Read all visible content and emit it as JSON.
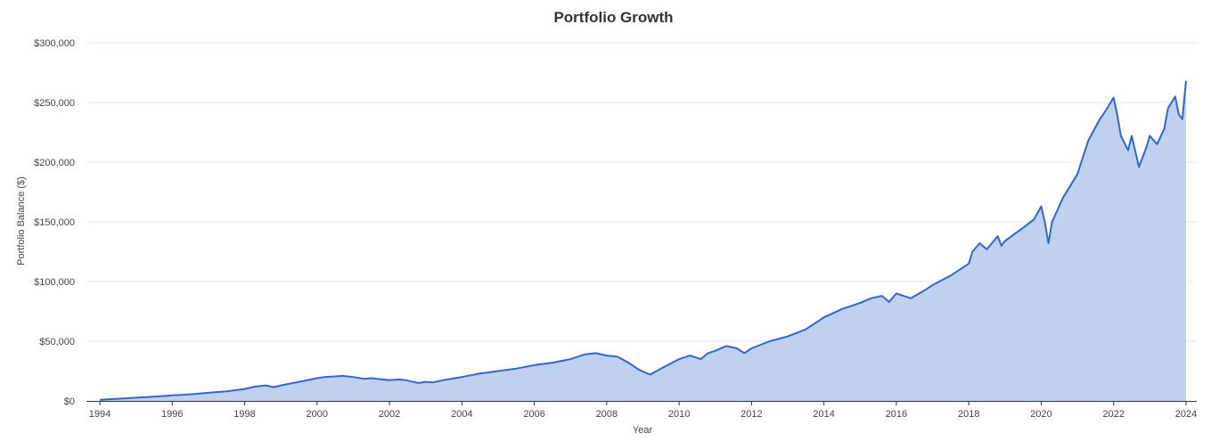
{
  "title": "Portfolio Growth",
  "chart_data": {
    "type": "area",
    "title": "Portfolio Growth",
    "xlabel": "Year",
    "ylabel": "Portfolio Balance ($)",
    "xlim": [
      1994,
      2024
    ],
    "ylim": [
      0,
      300000
    ],
    "grid": true,
    "y_ticks": [
      "$0",
      "$50,000",
      "$100,000",
      "$150,000",
      "$200,000",
      "$250,000",
      "$300,000"
    ],
    "x_ticks": [
      "1994",
      "1996",
      "1998",
      "2000",
      "2002",
      "2004",
      "2006",
      "2008",
      "2010",
      "2012",
      "2014",
      "2016",
      "2018",
      "2020",
      "2022",
      "2024"
    ],
    "colors": {
      "line": "#3366cc",
      "fill": "#c0d1f0",
      "grid": "#e6e6e6"
    },
    "series": [
      {
        "x": [
          1994.0,
          1994.5,
          1995.0,
          1995.5,
          1996.0,
          1996.5,
          1997.0,
          1997.5,
          1998.0,
          1998.3,
          1998.6,
          1998.8,
          1999.0,
          1999.5,
          2000.0,
          2000.2,
          2000.5,
          2000.7,
          2001.0,
          2001.3,
          2001.5,
          2001.8,
          2002.0,
          2002.3,
          2002.5,
          2002.8,
          2003.0,
          2003.2,
          2003.5,
          2004.0,
          2004.5,
          2005.0,
          2005.5,
          2006.0,
          2006.5,
          2007.0,
          2007.4,
          2007.7,
          2008.0,
          2008.3,
          2008.6,
          2008.9,
          2009.2,
          2009.5,
          2010.0,
          2010.3,
          2010.6,
          2010.8,
          2011.0,
          2011.3,
          2011.6,
          2011.8,
          2012.0,
          2012.5,
          2013.0,
          2013.5,
          2014.0,
          2014.5,
          2015.0,
          2015.3,
          2015.6,
          2015.8,
          2016.0,
          2016.4,
          2016.8,
          2017.0,
          2017.5,
          2018.0,
          2018.1,
          2018.3,
          2018.5,
          2018.8,
          2018.9,
          2019.0,
          2019.5,
          2019.8,
          2020.0,
          2020.1,
          2020.2,
          2020.3,
          2020.6,
          2020.8,
          2021.0,
          2021.3,
          2021.6,
          2021.8,
          2022.0,
          2022.1,
          2022.2,
          2022.4,
          2022.5,
          2022.7,
          2022.9,
          2023.0,
          2023.2,
          2023.4,
          2023.5,
          2023.7,
          2023.8,
          2023.9,
          2024.0
        ],
        "values": [
          1000,
          1800,
          2700,
          3600,
          4600,
          5500,
          6800,
          8000,
          10000,
          12000,
          13000,
          11500,
          13000,
          16000,
          19000,
          20000,
          20500,
          21000,
          20000,
          18500,
          19000,
          18000,
          17500,
          18000,
          17000,
          15000,
          16000,
          15500,
          17500,
          20000,
          23000,
          25000,
          27000,
          30000,
          32000,
          35000,
          39000,
          40000,
          38000,
          37000,
          32000,
          26000,
          22000,
          27000,
          35000,
          38000,
          35000,
          40000,
          42000,
          46000,
          44000,
          40000,
          44000,
          50000,
          54000,
          60000,
          70000,
          77000,
          82000,
          86000,
          88000,
          83000,
          90000,
          86000,
          93000,
          97000,
          105000,
          115000,
          125000,
          132000,
          127000,
          138000,
          130000,
          134000,
          145000,
          152000,
          163000,
          150000,
          132000,
          150000,
          170000,
          180000,
          190000,
          218000,
          235000,
          244000,
          254000,
          240000,
          222000,
          210000,
          222000,
          196000,
          212000,
          222000,
          215000,
          228000,
          245000,
          255000,
          240000,
          236000,
          268000
        ]
      }
    ]
  }
}
